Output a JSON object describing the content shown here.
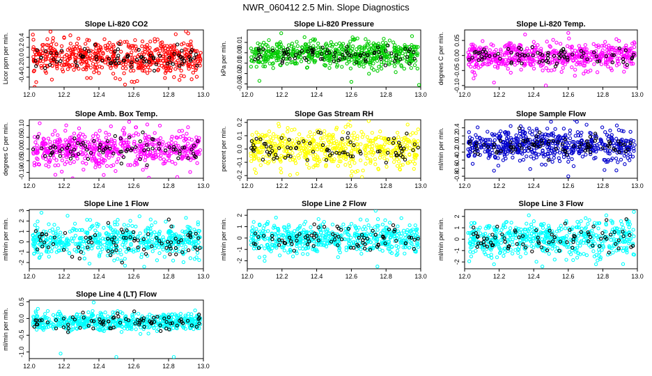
{
  "figure": {
    "title": "NWR_060412  2.5 Min. Slope Diagnostics"
  },
  "chart_data": [
    {
      "type": "scatter",
      "title": "Slope Li-820 CO2",
      "ylabel": "Licor ppm per min.",
      "xlabel": "",
      "xlim": [
        12.0,
        13.0
      ],
      "ylim": [
        -0.6,
        0.55
      ],
      "x_ticks": [
        "12.0",
        "12.2",
        "12.4",
        "12.6",
        "12.8",
        "13.0"
      ],
      "y_ticks": [
        "-0.4",
        "-0.2",
        "0.0",
        "0.2",
        "0.4"
      ],
      "color": "#ff0000",
      "series": [
        {
          "color": "#ff0000",
          "count": 560,
          "spread": 0.17,
          "outliers": [
            [
              12.04,
              -0.5
            ],
            [
              12.13,
              -0.45
            ],
            [
              12.55,
              -0.55
            ],
            [
              12.9,
              0.52
            ],
            [
              12.62,
              -0.48
            ]
          ]
        },
        {
          "color": "#000000",
          "count": 80,
          "spread": 0.11
        }
      ]
    },
    {
      "type": "scatter",
      "title": "Slope Li-820 Pressure",
      "ylabel": "kPa per min.",
      "xlabel": "",
      "xlim": [
        12.0,
        13.0
      ],
      "ylim": [
        -0.033,
        0.022
      ],
      "x_ticks": [
        "12.0",
        "12.2",
        "12.4",
        "12.6",
        "12.8",
        "13.0"
      ],
      "y_ticks": [
        "-0.03",
        "-0.02",
        "-0.01",
        "0.00",
        "0.01"
      ],
      "color": "#00cc00",
      "series": [
        {
          "color": "#00cc00",
          "count": 560,
          "spread": 0.0065,
          "outliers": [
            [
              12.07,
              -0.027
            ],
            [
              12.33,
              0.015
            ],
            [
              12.6,
              -0.028
            ],
            [
              12.99,
              -0.031
            ],
            [
              12.95,
              0.016
            ]
          ]
        },
        {
          "color": "#000000",
          "count": 80,
          "spread": 0.004
        }
      ]
    },
    {
      "type": "scatter",
      "title": "Slope Li-820 Temp.",
      "ylabel": "degrees C per min.",
      "xlabel": "",
      "xlim": [
        12.0,
        13.0
      ],
      "ylim": [
        -0.105,
        0.085
      ],
      "x_ticks": [
        "12.0",
        "12.2",
        "12.4",
        "12.6",
        "12.8",
        "13.0"
      ],
      "y_ticks": [
        "-0.10",
        "-0.05",
        "0.00",
        "0.05"
      ],
      "color": "#ff00ff",
      "series": [
        {
          "color": "#ff00ff",
          "count": 560,
          "spread": 0.022,
          "outliers": [
            [
              12.17,
              -0.09
            ],
            [
              12.47,
              -0.1
            ],
            [
              12.6,
              0.075
            ],
            [
              12.35,
              0.07
            ]
          ]
        },
        {
          "color": "#000000",
          "count": 80,
          "spread": 0.016
        }
      ]
    },
    {
      "type": "scatter",
      "title": "Slope Amb. Box Temp.",
      "ylabel": "degrees C per min.",
      "xlabel": "",
      "xlim": [
        12.0,
        13.0
      ],
      "ylim": [
        -0.125,
        0.125
      ],
      "x_ticks": [
        "12.0",
        "12.2",
        "12.4",
        "12.6",
        "12.8",
        "13.0"
      ],
      "y_ticks": [
        "-0.10",
        "-0.05",
        "0.00",
        "0.05",
        "0.10"
      ],
      "color": "#ff00ff",
      "series": [
        {
          "color": "#ff00ff",
          "count": 560,
          "spread": 0.037,
          "outliers": [
            [
              12.06,
              0.11
            ],
            [
              12.15,
              -0.11
            ],
            [
              12.85,
              -0.12
            ],
            [
              12.75,
              0.1
            ]
          ]
        },
        {
          "color": "#000000",
          "count": 80,
          "spread": 0.03
        }
      ]
    },
    {
      "type": "scatter",
      "title": "Slope Gas Stream RH",
      "ylabel": "percent per min.",
      "xlabel": "",
      "xlim": [
        12.0,
        13.0
      ],
      "ylim": [
        -0.22,
        0.22
      ],
      "x_ticks": [
        "12.0",
        "12.2",
        "12.4",
        "12.6",
        "12.8",
        "13.0"
      ],
      "y_ticks": [
        "-0.2",
        "-0.1",
        "0.0",
        "0.1",
        "0.2"
      ],
      "color": "#ffff00",
      "series": [
        {
          "color": "#ffff00",
          "count": 560,
          "spread": 0.07,
          "outliers": [
            [
              12.18,
              0.19
            ],
            [
              12.6,
              -0.2
            ],
            [
              12.7,
              0.21
            ],
            [
              12.05,
              -0.18
            ]
          ]
        },
        {
          "color": "#000000",
          "count": 80,
          "spread": 0.055
        }
      ]
    },
    {
      "type": "scatter",
      "title": "Slope Sample Flow",
      "ylabel": "ml/min per min.",
      "xlabel": "",
      "xlim": [
        12.0,
        13.0
      ],
      "ylim": [
        -0.85,
        0.6
      ],
      "x_ticks": [
        "12.0",
        "12.2",
        "12.4",
        "12.6",
        "12.8",
        "13.0"
      ],
      "y_ticks": [
        "-0.8",
        "-0.6",
        "-0.4",
        "-0.2",
        "0.0",
        "0.2",
        "0.4"
      ],
      "color": "#0000cc",
      "series": [
        {
          "color": "#0000cc",
          "count": 560,
          "spread": 0.2,
          "outliers": [
            [
              12.6,
              -0.8
            ],
            [
              12.5,
              0.55
            ],
            [
              12.65,
              0.55
            ],
            [
              12.38,
              -0.62
            ]
          ]
        },
        {
          "color": "#000000",
          "count": 80,
          "spread": 0.13
        }
      ]
    },
    {
      "type": "scatter",
      "title": "Slope Line 1 Flow",
      "ylabel": "ml/min per min.",
      "xlabel": "",
      "xlim": [
        12.0,
        13.0
      ],
      "ylim": [
        -2.6,
        3.1
      ],
      "x_ticks": [
        "12.0",
        "12.2",
        "12.4",
        "12.6",
        "12.8",
        "13.0"
      ],
      "y_ticks": [
        "-2",
        "-1",
        "0",
        "1",
        "2",
        "3"
      ],
      "color": "#00ffff",
      "series": [
        {
          "color": "#00ffff",
          "count": 560,
          "spread": 0.8,
          "outliers": [
            [
              12.07,
              2.8
            ],
            [
              12.55,
              -2.3
            ],
            [
              12.66,
              -2.4
            ],
            [
              12.22,
              2.5
            ],
            [
              12.9,
              2.3
            ]
          ]
        },
        {
          "color": "#000000",
          "count": 80,
          "spread": 0.75
        }
      ]
    },
    {
      "type": "scatter",
      "title": "Slope Line 2 Flow",
      "ylabel": "ml/min per min.",
      "xlabel": "",
      "xlim": [
        12.0,
        13.0
      ],
      "ylim": [
        -2.7,
        2.5
      ],
      "x_ticks": [
        "12.0",
        "12.2",
        "12.4",
        "12.6",
        "12.8",
        "13.0"
      ],
      "y_ticks": [
        "-2",
        "-1",
        "0",
        "1",
        "2"
      ],
      "color": "#00ffff",
      "series": [
        {
          "color": "#00ffff",
          "count": 560,
          "spread": 0.65,
          "outliers": [
            [
              12.74,
              2.4
            ],
            [
              12.75,
              -2.5
            ],
            [
              12.1,
              -2.0
            ]
          ]
        },
        {
          "color": "#000000",
          "count": 80,
          "spread": 0.55
        }
      ]
    },
    {
      "type": "scatter",
      "title": "Slope Line 3 Flow",
      "ylabel": "ml/min per min.",
      "xlabel": "",
      "xlim": [
        12.0,
        13.0
      ],
      "ylim": [
        -2.6,
        2.6
      ],
      "x_ticks": [
        "12.0",
        "12.2",
        "12.4",
        "12.6",
        "12.8",
        "13.0"
      ],
      "y_ticks": [
        "-2",
        "-1",
        "0",
        "1",
        "2"
      ],
      "color": "#00ffff",
      "series": [
        {
          "color": "#00ffff",
          "count": 560,
          "spread": 0.75,
          "outliers": [
            [
              12.98,
              2.4
            ],
            [
              12.45,
              -2.4
            ],
            [
              12.17,
              -2.2
            ],
            [
              12.82,
              2.1
            ]
          ]
        },
        {
          "color": "#000000",
          "count": 80,
          "spread": 0.7
        }
      ]
    },
    {
      "type": "scatter",
      "title": "Slope Line 4 (LT) Flow",
      "ylabel": "ml/min per min.",
      "xlabel": "",
      "xlim": [
        12.0,
        13.0
      ],
      "ylim": [
        -1.2,
        0.55
      ],
      "x_ticks": [
        "12.0",
        "12.2",
        "12.4",
        "12.6",
        "12.8",
        "13.0"
      ],
      "y_ticks": [
        "-1.0",
        "-0.5",
        "0.0",
        "0.5"
      ],
      "color": "#00ffff",
      "series": [
        {
          "color": "#00ffff",
          "count": 560,
          "spread": 0.13,
          "outliers": [
            [
              12.18,
              -1.05
            ],
            [
              12.5,
              -1.15
            ],
            [
              12.83,
              -1.15
            ],
            [
              12.37,
              0.48
            ]
          ]
        },
        {
          "color": "#000000",
          "count": 80,
          "spread": 0.11
        }
      ]
    }
  ]
}
